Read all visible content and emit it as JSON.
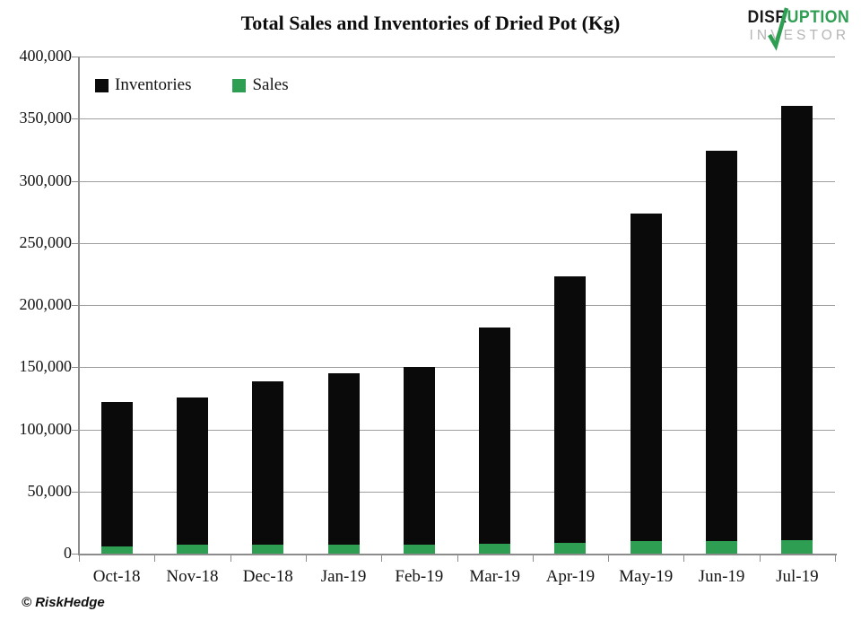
{
  "header": {
    "title": "Total Sales and Inventories of Dried Pot (Kg)"
  },
  "logo": {
    "disr": "DISR",
    "uption": "UPTION",
    "investor": "INVESTOR",
    "green": "#2e9e53",
    "gray": "#b5b5b5"
  },
  "footer": {
    "credit": "© RiskHedge"
  },
  "chart_data": {
    "type": "bar",
    "stacked": true,
    "title": "Total Sales and Inventories of Dried Pot (Kg)",
    "categories": [
      "Oct-18",
      "Nov-18",
      "Dec-18",
      "Jan-19",
      "Feb-19",
      "Mar-19",
      "Apr-19",
      "May-19",
      "Jun-19",
      "Jul-19"
    ],
    "series": [
      {
        "name": "Inventories",
        "color": "#0a0a0a",
        "values": [
          116000,
          118500,
          131000,
          138000,
          143000,
          174500,
          215000,
          263500,
          314000,
          349500
        ]
      },
      {
        "name": "Sales",
        "color": "#2e9e53",
        "values": [
          6000,
          7000,
          7500,
          7300,
          7000,
          7700,
          8400,
          9800,
          10000,
          10800
        ]
      }
    ],
    "stack_order_bottom_to_top": [
      "Sales",
      "Inventories"
    ],
    "stacked_totals": [
      122000,
      125500,
      138500,
      145300,
      150000,
      182200,
      223400,
      273300,
      324000,
      360300
    ],
    "xlabel": "",
    "ylabel": "",
    "ylim": [
      0,
      400000
    ],
    "ytick_step": 50000,
    "ytick_labels": [
      "0",
      "50,000",
      "100,000",
      "150,000",
      "200,000",
      "250,000",
      "300,000",
      "350,000",
      "400,000"
    ],
    "grid": true,
    "legend_position": "top-left-inside"
  }
}
